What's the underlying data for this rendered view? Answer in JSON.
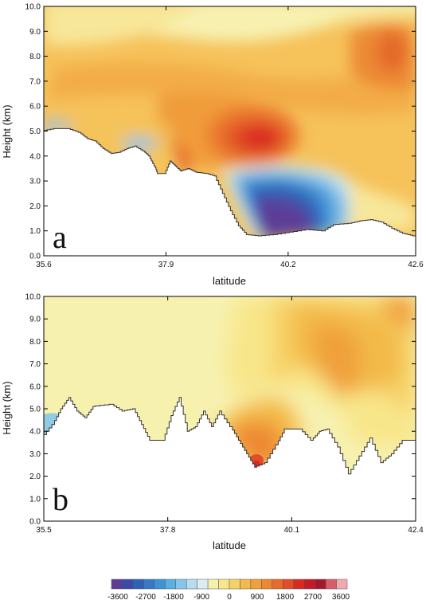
{
  "chart_data": [
    {
      "type": "heatmap",
      "panel_label": "a",
      "xlabel": "latitude",
      "ylabel": "Height (km)",
      "xlim": [
        35.6,
        42.6
      ],
      "ylim": [
        0.0,
        10.0
      ],
      "x_ticks": [
        "35.6",
        "37.9",
        "40.2",
        "42.6"
      ],
      "x_tick_values": [
        35.6,
        37.9,
        40.2,
        42.6
      ],
      "y_ticks": [
        "0.0",
        "1.0",
        "2.0",
        "3.0",
        "4.0",
        "5.0",
        "6.0",
        "7.0",
        "8.0",
        "9.0",
        "10.0"
      ],
      "terrain_km": [
        [
          35.6,
          5.0
        ],
        [
          35.85,
          5.1
        ],
        [
          36.1,
          5.1
        ],
        [
          36.3,
          4.95
        ],
        [
          36.45,
          4.7
        ],
        [
          36.6,
          4.6
        ],
        [
          36.75,
          4.3
        ],
        [
          36.9,
          4.1
        ],
        [
          37.05,
          4.15
        ],
        [
          37.2,
          4.3
        ],
        [
          37.35,
          4.4
        ],
        [
          37.5,
          4.2
        ],
        [
          37.6,
          4.0
        ],
        [
          37.7,
          3.6
        ],
        [
          37.75,
          3.3
        ],
        [
          37.9,
          3.3
        ],
        [
          38.0,
          3.8
        ],
        [
          38.1,
          3.6
        ],
        [
          38.2,
          3.4
        ],
        [
          38.35,
          3.5
        ],
        [
          38.5,
          3.35
        ],
        [
          38.7,
          3.3
        ],
        [
          38.85,
          3.2
        ],
        [
          39.0,
          2.5
        ],
        [
          39.15,
          1.8
        ],
        [
          39.3,
          1.2
        ],
        [
          39.45,
          0.85
        ],
        [
          39.7,
          0.8
        ],
        [
          40.0,
          0.85
        ],
        [
          40.3,
          0.95
        ],
        [
          40.6,
          1.05
        ],
        [
          40.9,
          1.0
        ],
        [
          41.1,
          1.25
        ],
        [
          41.4,
          1.3
        ],
        [
          41.6,
          1.4
        ],
        [
          41.8,
          1.45
        ],
        [
          42.0,
          1.35
        ],
        [
          42.2,
          1.1
        ],
        [
          42.4,
          0.9
        ],
        [
          42.6,
          0.8
        ]
      ],
      "field_features": [
        {
          "kind": "max",
          "lat": 39.95,
          "z_km": 4.6,
          "value": 2400
        },
        {
          "kind": "max",
          "lat": 42.3,
          "z_km": 8.5,
          "value": 1700
        },
        {
          "kind": "min",
          "lat": 39.9,
          "z_km": 1.6,
          "value": -3600
        }
      ]
    },
    {
      "type": "heatmap",
      "panel_label": "b",
      "xlabel": "latitude",
      "ylabel": "Height (km)",
      "xlim": [
        35.5,
        42.4
      ],
      "ylim": [
        0.0,
        10.0
      ],
      "x_ticks": [
        "35.5",
        "37.8",
        "40.1",
        "42.4"
      ],
      "x_tick_values": [
        35.5,
        37.8,
        40.1,
        42.4
      ],
      "y_ticks": [
        "0.0",
        "1.0",
        "2.0",
        "3.0",
        "4.0",
        "5.0",
        "6.0",
        "7.0",
        "8.0",
        "9.0",
        "10.0"
      ],
      "terrain_km": [
        [
          35.5,
          3.7
        ],
        [
          35.7,
          4.3
        ],
        [
          35.85,
          5.0
        ],
        [
          36.0,
          5.5
        ],
        [
          36.15,
          4.9
        ],
        [
          36.3,
          4.6
        ],
        [
          36.45,
          5.1
        ],
        [
          36.8,
          5.2
        ],
        [
          37.0,
          4.9
        ],
        [
          37.2,
          5.0
        ],
        [
          37.35,
          4.3
        ],
        [
          37.5,
          3.6
        ],
        [
          37.75,
          3.6
        ],
        [
          37.9,
          4.7
        ],
        [
          38.05,
          5.5
        ],
        [
          38.2,
          4.0
        ],
        [
          38.35,
          4.2
        ],
        [
          38.5,
          4.9
        ],
        [
          38.65,
          4.2
        ],
        [
          38.8,
          4.9
        ],
        [
          39.0,
          4.2
        ],
        [
          39.15,
          3.6
        ],
        [
          39.3,
          3.0
        ],
        [
          39.45,
          2.4
        ],
        [
          39.65,
          2.6
        ],
        [
          39.85,
          3.4
        ],
        [
          40.0,
          4.1
        ],
        [
          40.3,
          4.1
        ],
        [
          40.5,
          3.6
        ],
        [
          40.65,
          4.0
        ],
        [
          40.8,
          4.1
        ],
        [
          41.0,
          3.3
        ],
        [
          41.2,
          2.1
        ],
        [
          41.4,
          2.9
        ],
        [
          41.6,
          3.7
        ],
        [
          41.8,
          2.6
        ],
        [
          42.0,
          3.0
        ],
        [
          42.2,
          3.6
        ],
        [
          42.4,
          3.6
        ]
      ],
      "field_features": [
        {
          "kind": "max",
          "lat": 39.55,
          "z_km": 2.6,
          "value": 2700
        },
        {
          "kind": "max",
          "lat": 40.6,
          "z_km": 7.0,
          "value": 1400
        },
        {
          "kind": "min",
          "lat": 35.55,
          "z_km": 4.0,
          "value": -900
        }
      ]
    }
  ],
  "colorbar": {
    "tick_labels": [
      "-3600",
      "-2700",
      "-1800",
      "-900",
      "0",
      "900",
      "1800",
      "2700",
      "3600"
    ],
    "colors": [
      "#5b3c97",
      "#3b4aa6",
      "#2f62b7",
      "#3779c7",
      "#3f92d6",
      "#5aaee0",
      "#86c6ea",
      "#b5dcef",
      "#dcedf2",
      "#f5f1ad",
      "#f8e68a",
      "#f7d166",
      "#f3b94a",
      "#f0a03a",
      "#ed8733",
      "#e86b2d",
      "#e14d26",
      "#d92a22",
      "#c61b26",
      "#a8162c",
      "#d85c6c",
      "#f3a8b0"
    ]
  }
}
